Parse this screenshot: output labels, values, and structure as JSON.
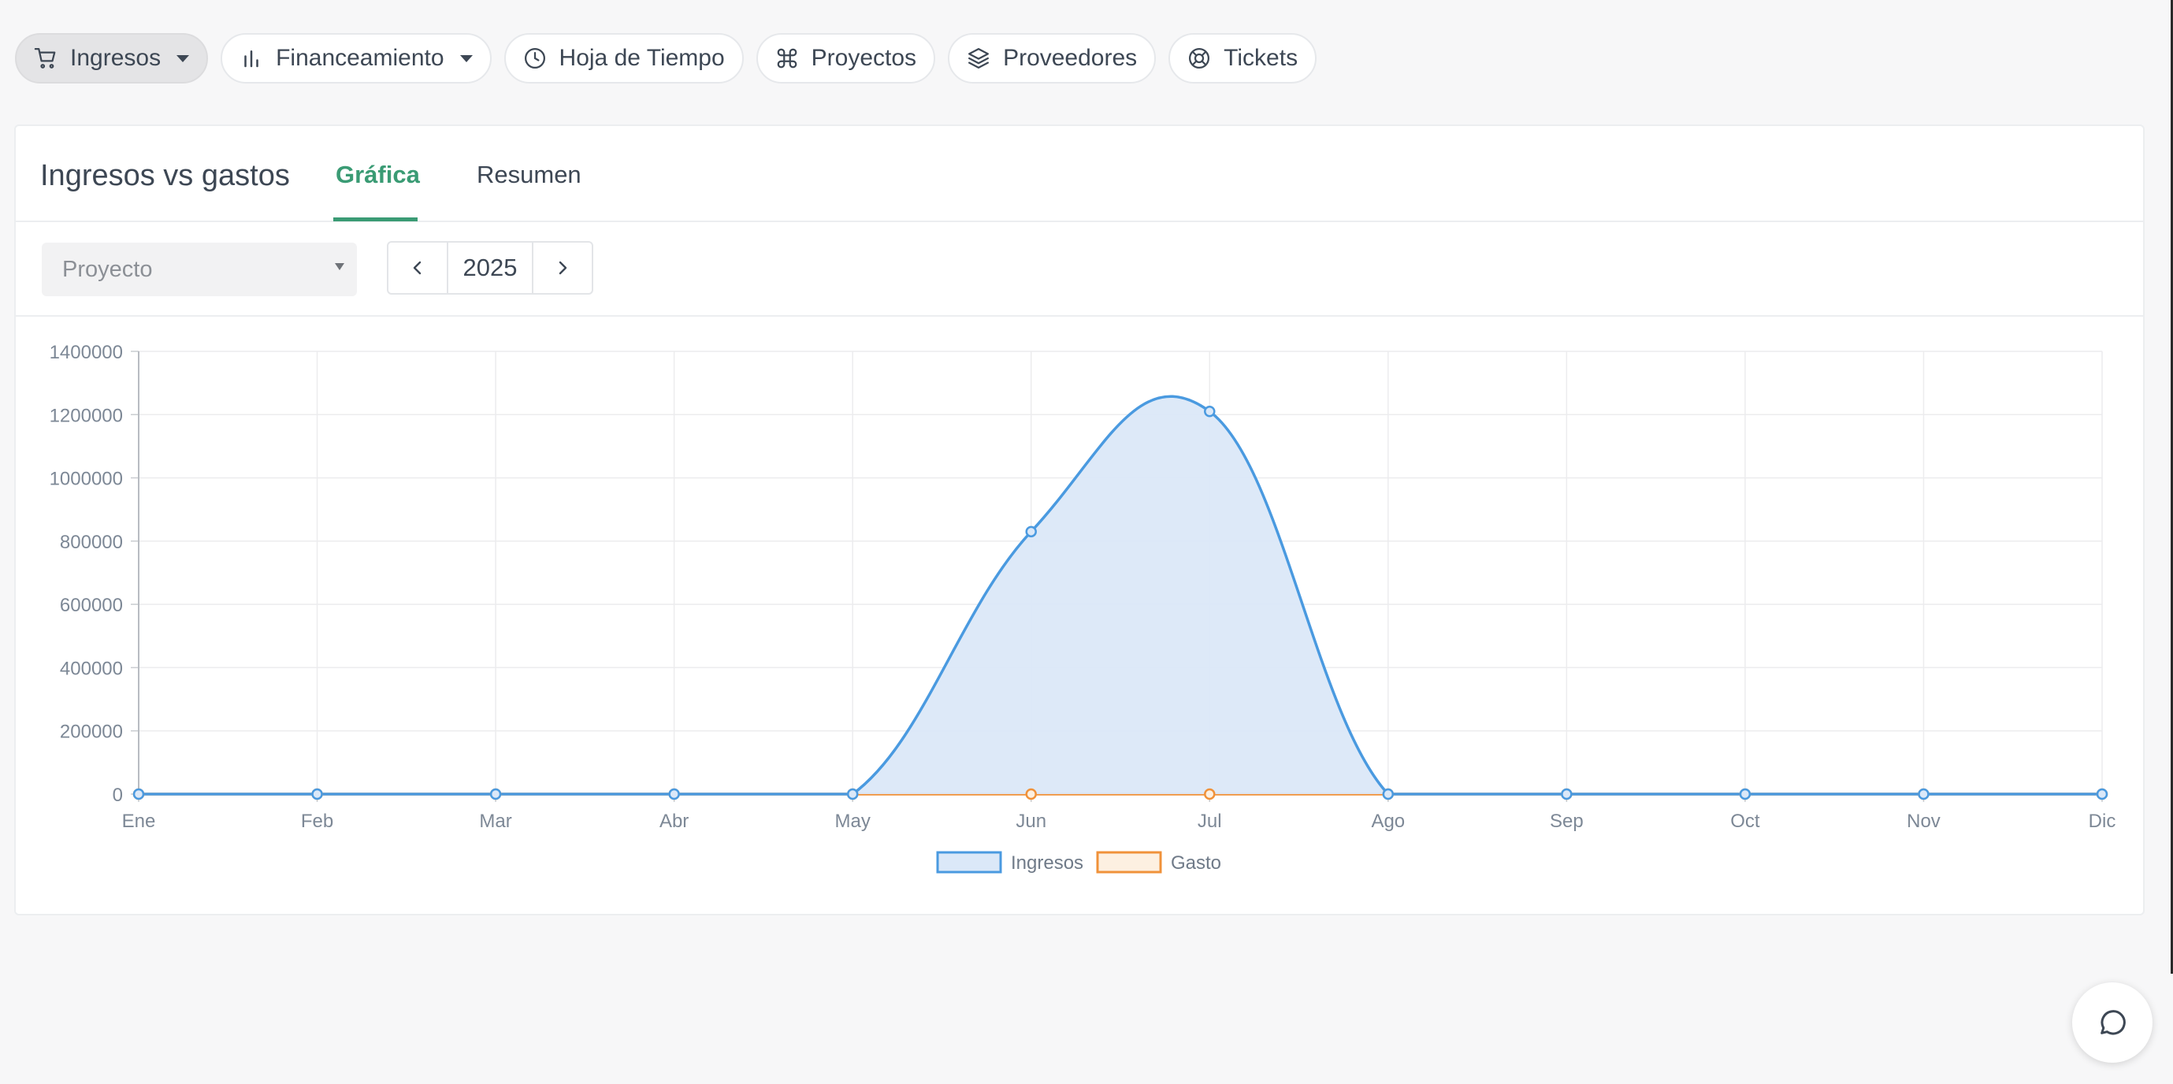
{
  "nav": {
    "items": [
      {
        "label": "Ingresos",
        "icon": "cart-icon",
        "dropdown": true,
        "active": true
      },
      {
        "label": "Financeamiento",
        "icon": "bar-chart-icon",
        "dropdown": true,
        "active": false
      },
      {
        "label": "Hoja de Tiempo",
        "icon": "clock-icon",
        "dropdown": false,
        "active": false
      },
      {
        "label": "Proyectos",
        "icon": "command-icon",
        "dropdown": false,
        "active": false
      },
      {
        "label": "Proveedores",
        "icon": "layers-icon",
        "dropdown": false,
        "active": false
      },
      {
        "label": "Tickets",
        "icon": "lifebuoy-icon",
        "dropdown": false,
        "active": false
      }
    ]
  },
  "card": {
    "title": "Ingresos vs gastos",
    "tabs": [
      {
        "label": "Gráfica",
        "active": true
      },
      {
        "label": "Resumen",
        "active": false
      }
    ]
  },
  "filters": {
    "project_placeholder": "Proyecto",
    "year": "2025"
  },
  "colors": {
    "accent": "#3a9b74",
    "ingresos": "#4a9ae0",
    "ingresos_fill": "#dbe8f8",
    "gasto": "#f0923a",
    "gasto_fill": "#fdf0e1"
  },
  "chart_data": {
    "type": "area",
    "categories": [
      "Ene",
      "Feb",
      "Mar",
      "Abr",
      "May",
      "Jun",
      "Jul",
      "Ago",
      "Sep",
      "Oct",
      "Nov",
      "Dic"
    ],
    "series": [
      {
        "name": "Ingresos",
        "values": [
          0,
          0,
          0,
          0,
          0,
          830000,
          1210000,
          0,
          0,
          0,
          0,
          0
        ]
      },
      {
        "name": "Gasto",
        "values": [
          0,
          0,
          0,
          0,
          0,
          0,
          0,
          0,
          0,
          0,
          0,
          0
        ]
      }
    ],
    "yticks": [
      "0",
      "200000",
      "400000",
      "600000",
      "800000",
      "1000000",
      "1200000",
      "1400000"
    ],
    "ylim": [
      0,
      1400000
    ],
    "grid": true,
    "legend_position": "bottom"
  }
}
